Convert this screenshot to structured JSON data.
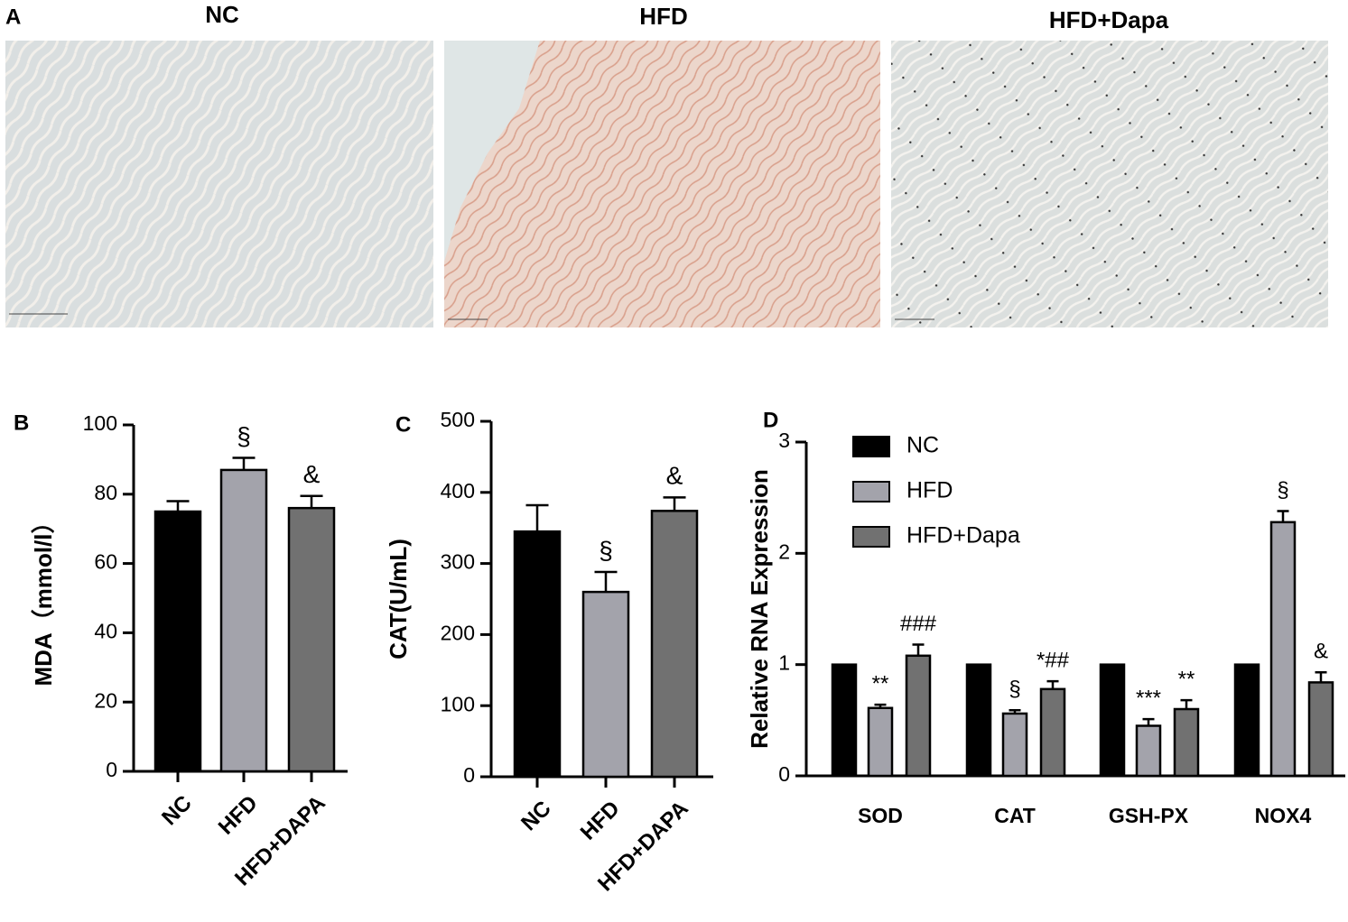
{
  "panel_a": {
    "label": "A",
    "images": [
      {
        "title": "NC"
      },
      {
        "title": "HFD"
      },
      {
        "title": "HFD+Dapa"
      }
    ]
  },
  "chart_data": [
    {
      "type": "bar",
      "panel_label": "B",
      "ylabel": "MDA（mmol/l）",
      "categories": [
        "NC",
        "HFD",
        "HFD+DAPA"
      ],
      "values": [
        75,
        87,
        76
      ],
      "errors": [
        3,
        3.5,
        3.5
      ],
      "colors": [
        "#000000",
        "#a3a3ab",
        "#717171"
      ],
      "significance": [
        null,
        "§",
        "&"
      ],
      "ylim": [
        0,
        100
      ],
      "yticks": [
        0,
        20,
        40,
        60,
        80,
        100
      ]
    },
    {
      "type": "bar",
      "panel_label": "C",
      "ylabel": "CAT(U/mL)",
      "categories": [
        "NC",
        "HFD",
        "HFD+DAPA"
      ],
      "values": [
        345,
        260,
        374
      ],
      "errors": [
        37,
        28,
        19
      ],
      "colors": [
        "#000000",
        "#a3a3ab",
        "#717171"
      ],
      "significance": [
        null,
        "§",
        "&"
      ],
      "ylim": [
        0,
        500
      ],
      "yticks": [
        0,
        100,
        200,
        300,
        400,
        500
      ]
    },
    {
      "type": "grouped_bar",
      "panel_label": "D",
      "ylabel": "Relative RNA Expression",
      "categories": [
        "SOD",
        "CAT",
        "GSH-PX",
        "NOX4"
      ],
      "legend": "top-left",
      "series": [
        {
          "name": "NC",
          "color": "#000000",
          "values": [
            1,
            1,
            1,
            1
          ],
          "errors": [
            0,
            0,
            0,
            0
          ],
          "significance": [
            null,
            null,
            null,
            null
          ]
        },
        {
          "name": "HFD",
          "color": "#a3a3ab",
          "values": [
            0.61,
            0.56,
            0.45,
            2.28
          ],
          "errors": [
            0.03,
            0.03,
            0.06,
            0.1
          ],
          "significance": [
            "**",
            "§",
            "***",
            "§"
          ]
        },
        {
          "name": "HFD+Dapa",
          "color": "#717171",
          "values": [
            1.08,
            0.78,
            0.6,
            0.84
          ],
          "errors": [
            0.1,
            0.07,
            0.08,
            0.09
          ],
          "significance": [
            "###",
            "*##",
            "**",
            "&"
          ]
        }
      ],
      "ylim": [
        0,
        3
      ],
      "yticks": [
        0,
        1,
        2,
        3
      ]
    }
  ]
}
